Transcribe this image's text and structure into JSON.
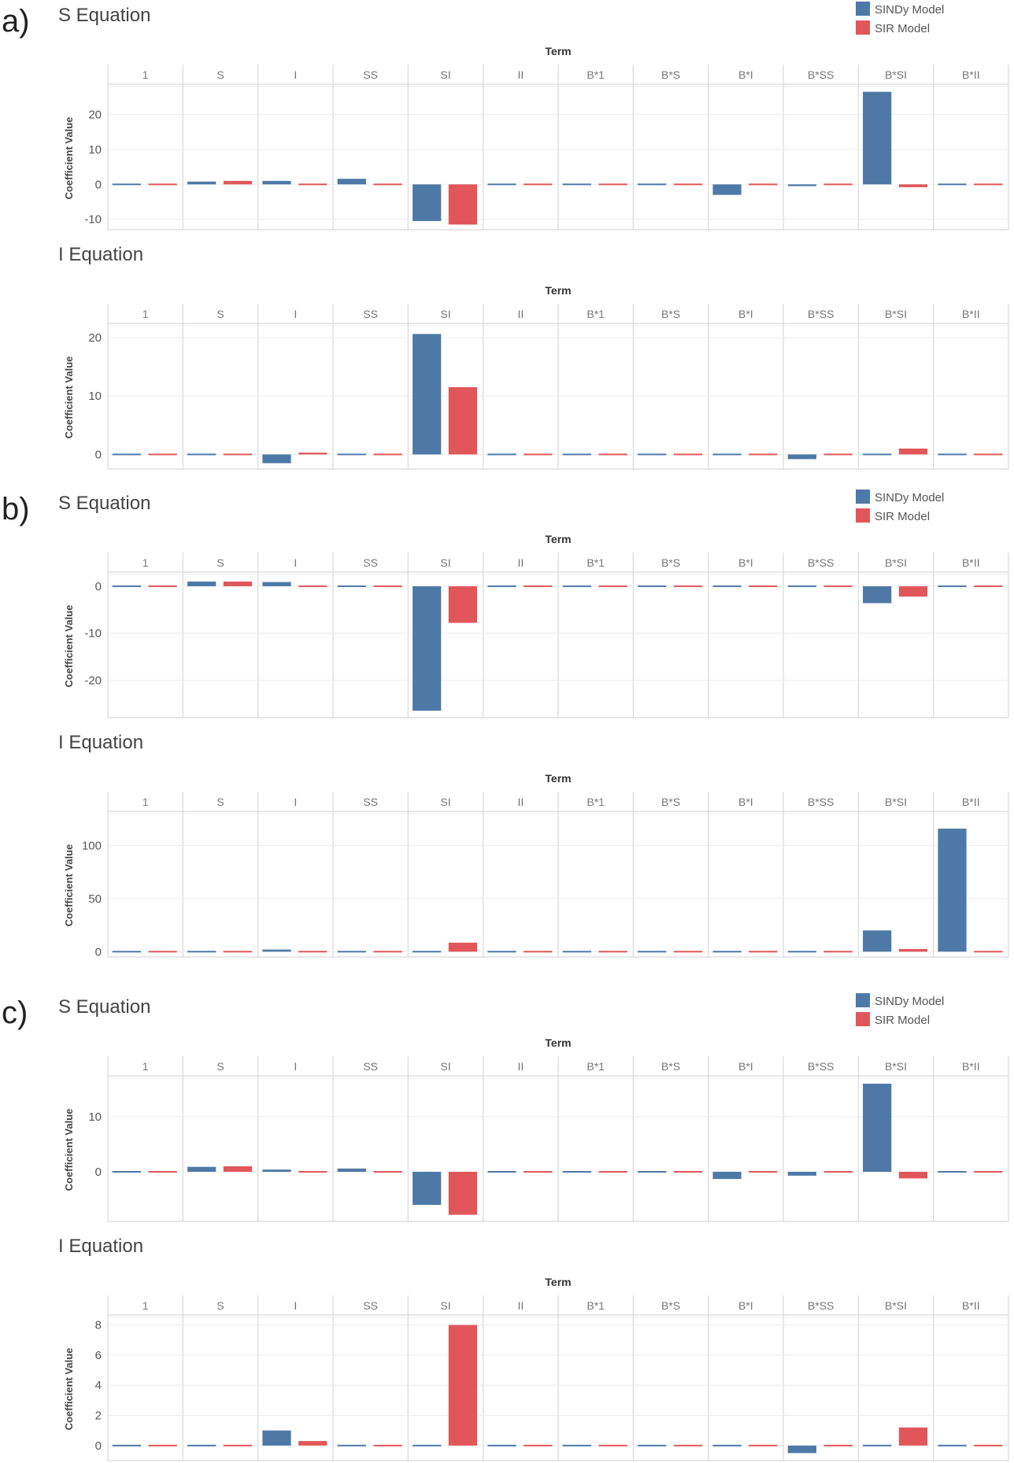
{
  "figure": {
    "term_header": "Term",
    "ylabel": "Coefficient Value",
    "terms": [
      "1",
      "S",
      "I",
      "SS",
      "SI",
      "II",
      "B*1",
      "B*S",
      "B*I",
      "B*SS",
      "B*SI",
      "B*II"
    ],
    "legend": [
      {
        "name": "SINDy Model",
        "color": "#4e79a7"
      },
      {
        "name": "SIR Model",
        "color": "#e15759"
      }
    ],
    "colors": {
      "sindy": "#4e79a7",
      "sir": "#e15759",
      "grid": "#d9d9d9",
      "text": "#555555",
      "header_text": "#333333"
    }
  },
  "panels": [
    {
      "label": "a)",
      "s_title": "S Equation",
      "i_title": "I Equation"
    },
    {
      "label": "b)",
      "s_title": "S Equation",
      "i_title": "I Equation"
    },
    {
      "label": "c)",
      "s_title": "S Equation",
      "i_title": "I Equation"
    }
  ],
  "chart_data": [
    {
      "panel": "a)",
      "title": "S Equation",
      "type": "bar",
      "xlabel": "Term",
      "ylabel": "Coefficient Value",
      "categories": [
        "1",
        "S",
        "I",
        "SS",
        "SI",
        "II",
        "B*1",
        "B*S",
        "B*I",
        "B*SS",
        "B*SI",
        "B*II"
      ],
      "ylim": [
        -13,
        28
      ],
      "yticks": [
        -10,
        0,
        10,
        20
      ],
      "series": [
        {
          "name": "SINDy Model",
          "values": [
            0.2,
            0.8,
            1.0,
            1.6,
            -10.5,
            0.1,
            0.1,
            0.3,
            -3.0,
            -0.5,
            26.5,
            0.1
          ]
        },
        {
          "name": "SIR Model",
          "values": [
            -0.1,
            1.0,
            0,
            0,
            -11.5,
            0,
            0,
            0,
            0,
            0,
            -0.8,
            0
          ]
        }
      ]
    },
    {
      "panel": "a)",
      "title": "I Equation",
      "type": "bar",
      "xlabel": "Term",
      "ylabel": "Coefficient Value",
      "categories": [
        "1",
        "S",
        "I",
        "SS",
        "SI",
        "II",
        "B*1",
        "B*S",
        "B*I",
        "B*SS",
        "B*SI",
        "B*II"
      ],
      "ylim": [
        -2.5,
        22
      ],
      "yticks": [
        0,
        10,
        20
      ],
      "series": [
        {
          "name": "SINDy Model",
          "values": [
            0,
            0,
            -1.5,
            0.1,
            20.6,
            0,
            0,
            0.1,
            0,
            -0.8,
            0,
            0
          ]
        },
        {
          "name": "SIR Model",
          "values": [
            0,
            0,
            0.3,
            0,
            11.5,
            0,
            0,
            0,
            0,
            0,
            1.0,
            0
          ]
        }
      ]
    },
    {
      "panel": "b)",
      "title": "S Equation",
      "type": "bar",
      "xlabel": "Term",
      "ylabel": "Coefficient Value",
      "categories": [
        "1",
        "S",
        "I",
        "SS",
        "SI",
        "II",
        "B*1",
        "B*S",
        "B*I",
        "B*SS",
        "B*SI",
        "B*II"
      ],
      "ylim": [
        -28,
        2.5
      ],
      "yticks": [
        -20,
        -10,
        0
      ],
      "series": [
        {
          "name": "SINDy Model",
          "values": [
            0.1,
            1.0,
            0.9,
            0.1,
            -26.5,
            0.1,
            0.1,
            0.1,
            0.3,
            0.3,
            -3.6,
            0.1
          ]
        },
        {
          "name": "SIR Model",
          "values": [
            0,
            1.0,
            0,
            0,
            -7.8,
            0,
            0,
            0,
            0,
            0,
            -2.2,
            0
          ]
        }
      ]
    },
    {
      "panel": "b)",
      "title": "I Equation",
      "type": "bar",
      "xlabel": "Term",
      "ylabel": "Coefficient Value",
      "categories": [
        "1",
        "S",
        "I",
        "SS",
        "SI",
        "II",
        "B*1",
        "B*S",
        "B*I",
        "B*SS",
        "B*SI",
        "B*II"
      ],
      "ylim": [
        -5,
        130
      ],
      "yticks": [
        0,
        50,
        100
      ],
      "series": [
        {
          "name": "SINDy Model",
          "values": [
            0,
            0.5,
            2.0,
            0,
            0,
            0,
            0,
            0,
            0,
            0,
            20.0,
            116
          ]
        },
        {
          "name": "SIR Model",
          "values": [
            0,
            0,
            0.5,
            0,
            8.5,
            0,
            0,
            0,
            0,
            0,
            2.5,
            0
          ]
        }
      ]
    },
    {
      "panel": "c)",
      "title": "S Equation",
      "type": "bar",
      "xlabel": "Term",
      "ylabel": "Coefficient Value",
      "categories": [
        "1",
        "S",
        "I",
        "SS",
        "SI",
        "II",
        "B*1",
        "B*S",
        "B*I",
        "B*SS",
        "B*SI",
        "B*II"
      ],
      "ylim": [
        -9,
        17
      ],
      "yticks": [
        0,
        10
      ],
      "series": [
        {
          "name": "SINDy Model",
          "values": [
            0.1,
            0.9,
            0.4,
            0.6,
            -6.0,
            0.1,
            0.1,
            0.1,
            -1.3,
            -0.7,
            16.0,
            0.1
          ]
        },
        {
          "name": "SIR Model",
          "values": [
            0,
            1.0,
            0,
            0,
            -7.8,
            0,
            0,
            0,
            0,
            0,
            -1.2,
            0
          ]
        }
      ]
    },
    {
      "panel": "c)",
      "title": "I Equation",
      "type": "bar",
      "xlabel": "Term",
      "ylabel": "Coefficient Value",
      "categories": [
        "1",
        "S",
        "I",
        "SS",
        "SI",
        "II",
        "B*1",
        "B*S",
        "B*I",
        "B*SS",
        "B*SI",
        "B*II"
      ],
      "ylim": [
        -1,
        8.5
      ],
      "yticks": [
        0,
        2,
        4,
        6,
        8
      ],
      "series": [
        {
          "name": "SINDy Model",
          "values": [
            0,
            0,
            1.0,
            0,
            0,
            0,
            0,
            0.1,
            0,
            -0.5,
            0,
            0
          ]
        },
        {
          "name": "SIR Model",
          "values": [
            0,
            0,
            0.3,
            0,
            8.0,
            0,
            0,
            0,
            0,
            0,
            1.2,
            0
          ]
        }
      ]
    }
  ]
}
